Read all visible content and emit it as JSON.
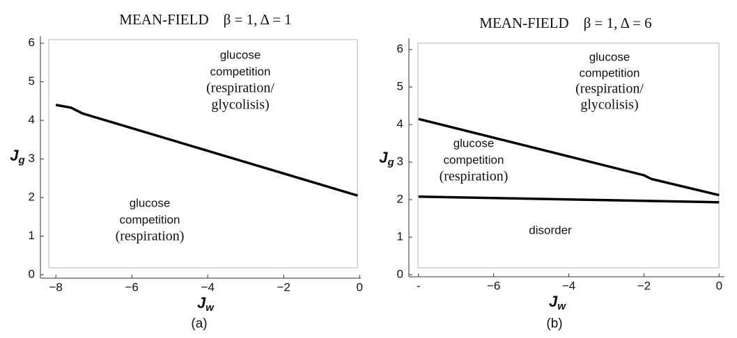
{
  "chart_data": [
    {
      "type": "line",
      "title": "MEAN-FIELD    β = 1, Δ = 1",
      "x_label": "J",
      "x_label_sub": "w",
      "y_label": "J",
      "y_label_sub": "g",
      "xlim": [
        -8.15,
        0.05
      ],
      "xticks": [
        -8,
        -6,
        -4,
        -2,
        0
      ],
      "ylim": [
        0,
        6.2
      ],
      "yticks": [
        0,
        1,
        2,
        3,
        4,
        5,
        6
      ],
      "series": [
        {
          "color": "#000000",
          "x": [
            -8,
            -7.6,
            -7.3,
            -0.05
          ],
          "values": [
            4.4,
            4.33,
            4.18,
            2.05
          ]
        }
      ],
      "annotations": [
        {
          "lines": [
            "glucose",
            "competition",
            "(respiration/",
            "glycolisis)"
          ]
        },
        {
          "lines": [
            "glucose",
            "competition",
            "(respiration)"
          ]
        }
      ],
      "caption": "(a)"
    },
    {
      "type": "line",
      "title": "MEAN-FIELD    β = 1, Δ = 6",
      "x_label": "J",
      "x_label_sub": "w",
      "y_label": "J",
      "y_label_sub": "g",
      "xlim": [
        -8.2,
        0.05
      ],
      "xticks": [
        {
          "value": -8,
          "label": "-"
        },
        -6,
        -4,
        -2,
        0
      ],
      "ylim": [
        0,
        6.3
      ],
      "yticks": [
        0,
        1,
        2,
        3,
        4,
        5,
        6
      ],
      "series": [
        {
          "color": "#000000",
          "x": [
            -8,
            -2,
            -1.8,
            0
          ],
          "values": [
            4.15,
            2.65,
            2.55,
            2.12
          ]
        },
        {
          "color": "#000000",
          "x": [
            -8,
            0
          ],
          "values": [
            2.08,
            1.93
          ]
        }
      ],
      "annotations": [
        {
          "lines": [
            "glucose",
            "competition",
            "(respiration/",
            "glycolisis)"
          ]
        },
        {
          "lines": [
            "glucose",
            "competition",
            "(respiration)"
          ]
        },
        {
          "lines": [
            "disorder"
          ]
        }
      ],
      "caption": "(b)"
    }
  ]
}
